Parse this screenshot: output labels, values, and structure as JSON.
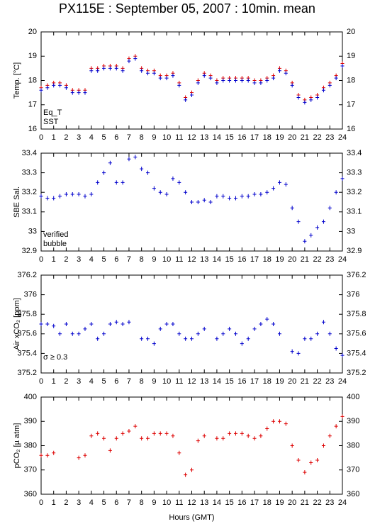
{
  "chart_data": [
    {
      "type": "scatter",
      "title": "PX115E : September 05, 2007 : 10min. mean",
      "ylabel": "Temp. [°C]",
      "x": [
        0,
        0.5,
        1,
        1.5,
        2,
        2.5,
        3,
        3.5,
        4,
        4.5,
        5,
        5.5,
        6,
        6.5,
        7,
        7.5,
        8,
        8.5,
        9,
        9.5,
        10,
        10.5,
        11,
        11.5,
        12,
        12.5,
        13,
        13.5,
        14,
        14.5,
        15,
        15.5,
        16,
        16.5,
        17,
        17.5,
        18,
        18.5,
        19,
        19.5,
        20,
        20.5,
        21,
        21.5,
        22,
        22.5,
        23,
        23.5,
        24
      ],
      "series": [
        {
          "name": "Eq_T",
          "color": "#dd0000",
          "values": [
            17.7,
            17.8,
            17.9,
            17.9,
            17.8,
            17.6,
            17.6,
            17.6,
            18.5,
            18.5,
            18.6,
            18.6,
            18.6,
            18.5,
            18.9,
            19.0,
            18.5,
            18.4,
            18.4,
            18.2,
            18.2,
            18.3,
            17.9,
            17.3,
            17.5,
            18.0,
            18.3,
            18.2,
            18.0,
            18.1,
            18.1,
            18.1,
            18.1,
            18.1,
            18.0,
            18.0,
            18.1,
            18.2,
            18.5,
            18.4,
            17.9,
            17.4,
            17.2,
            17.3,
            17.4,
            17.7,
            17.9,
            18.2,
            18.7
          ]
        },
        {
          "name": "SST",
          "color": "#0000cc",
          "values": [
            17.6,
            17.7,
            17.8,
            17.8,
            17.7,
            17.5,
            17.5,
            17.5,
            18.4,
            18.4,
            18.5,
            18.5,
            18.5,
            18.4,
            18.8,
            18.9,
            18.4,
            18.3,
            18.3,
            18.1,
            18.1,
            18.2,
            17.8,
            17.2,
            17.4,
            17.9,
            18.2,
            18.1,
            17.9,
            18.0,
            18.0,
            18.0,
            18.0,
            18.0,
            17.9,
            17.9,
            18.0,
            18.1,
            18.4,
            18.3,
            17.8,
            17.3,
            17.1,
            17.2,
            17.3,
            17.6,
            17.8,
            18.1,
            18.6
          ]
        }
      ],
      "ylim": [
        16,
        20
      ],
      "yticks": [
        16,
        17,
        18,
        19,
        20
      ],
      "xlim": [
        0,
        24
      ],
      "xticks": [
        0,
        1,
        2,
        3,
        4,
        5,
        6,
        7,
        8,
        9,
        10,
        11,
        12,
        13,
        14,
        15,
        16,
        17,
        18,
        19,
        20,
        21,
        22,
        23,
        24
      ]
    },
    {
      "type": "scatter",
      "ylabel": "SBE Sal.",
      "x": [
        0,
        0.5,
        1,
        1.5,
        2,
        2.5,
        3,
        3.5,
        4,
        4.5,
        5,
        5.5,
        6,
        6.5,
        7,
        7.5,
        8,
        8.5,
        9,
        9.5,
        10,
        10.5,
        11,
        11.5,
        12,
        12.5,
        13,
        13.5,
        14,
        14.5,
        15,
        15.5,
        16,
        16.5,
        17,
        17.5,
        18,
        18.5,
        19,
        19.5,
        20,
        20.5,
        21,
        21.5,
        22,
        22.5,
        23,
        23.5,
        24
      ],
      "series": [
        {
          "name": "verified",
          "color": "#0000cc",
          "values": [
            33.18,
            33.17,
            33.17,
            33.18,
            33.19,
            33.19,
            33.19,
            33.18,
            33.19,
            33.25,
            33.3,
            33.35,
            33.25,
            33.25,
            33.37,
            33.38,
            33.32,
            33.3,
            33.22,
            33.2,
            33.19,
            33.27,
            33.25,
            33.2,
            33.15,
            33.15,
            33.16,
            33.15,
            33.18,
            33.18,
            33.17,
            33.17,
            33.18,
            33.18,
            33.19,
            33.19,
            33.2,
            33.22,
            33.25,
            33.24,
            33.12,
            33.05,
            32.95,
            32.98,
            33.02,
            33.05,
            33.12,
            33.2,
            33.27
          ]
        },
        {
          "name": "bubble",
          "color": "#cc00cc",
          "values": [
            null,
            null,
            null,
            null,
            null,
            null,
            null,
            null,
            null,
            null,
            null,
            null,
            null,
            null,
            null,
            null,
            null,
            null,
            null,
            null,
            null,
            null,
            null,
            null,
            null,
            null,
            null,
            null,
            null,
            null,
            null,
            null,
            null,
            null,
            null,
            null,
            null,
            null,
            null,
            null,
            null,
            null,
            null,
            null,
            null,
            null,
            null,
            null,
            null
          ]
        }
      ],
      "ylim": [
        32.9,
        33.4
      ],
      "yticks": [
        32.9,
        33,
        33.1,
        33.2,
        33.3,
        33.4
      ],
      "xlim": [
        0,
        24
      ],
      "xticks": [
        0,
        1,
        2,
        3,
        4,
        5,
        6,
        7,
        8,
        9,
        10,
        11,
        12,
        13,
        14,
        15,
        16,
        17,
        18,
        19,
        20,
        21,
        22,
        23,
        24
      ]
    },
    {
      "type": "scatter",
      "ylabel": "Air xCO₂ [ppm]",
      "annotation": "σ ≥ 0.3",
      "annotation_color": "#cc00cc",
      "x": [
        0,
        0.5,
        1,
        1.5,
        2,
        2.5,
        3,
        3.5,
        4,
        4.5,
        5,
        5.5,
        6,
        6.5,
        7,
        7.5,
        8,
        8.5,
        9,
        9.5,
        10,
        10.5,
        11,
        11.5,
        12,
        12.5,
        13,
        13.5,
        14,
        14.5,
        15,
        15.5,
        16,
        16.5,
        17,
        17.5,
        18,
        18.5,
        19,
        19.5,
        20,
        20.5,
        21,
        21.5,
        22,
        22.5,
        23,
        23.5,
        24
      ],
      "series": [
        {
          "name": "Air xCO2",
          "color": "#0000cc",
          "values": [
            375.7,
            375.7,
            375.68,
            375.6,
            375.7,
            375.6,
            375.6,
            375.65,
            375.7,
            375.55,
            375.6,
            375.7,
            375.72,
            375.7,
            375.72,
            null,
            375.55,
            375.55,
            375.5,
            375.65,
            375.7,
            375.7,
            375.6,
            375.55,
            375.55,
            375.6,
            375.65,
            null,
            375.55,
            375.6,
            375.65,
            375.6,
            375.5,
            375.55,
            375.65,
            375.7,
            375.75,
            375.7,
            375.6,
            null,
            375.42,
            375.4,
            375.55,
            375.55,
            375.6,
            375.72,
            375.6,
            375.45,
            375.38
          ]
        }
      ],
      "ylim": [
        375.2,
        376.2
      ],
      "yticks": [
        375.2,
        375.4,
        375.6,
        375.8,
        376,
        376.2
      ],
      "xlim": [
        0,
        24
      ],
      "xticks": [
        0,
        1,
        2,
        3,
        4,
        5,
        6,
        7,
        8,
        9,
        10,
        11,
        12,
        13,
        14,
        15,
        16,
        17,
        18,
        19,
        20,
        21,
        22,
        23,
        24
      ]
    },
    {
      "type": "scatter",
      "ylabel": "pCO₂ [µ atm]",
      "xlabel": "Hours (GMT)",
      "x": [
        0,
        0.5,
        1,
        1.5,
        2,
        2.5,
        3,
        3.5,
        4,
        4.5,
        5,
        5.5,
        6,
        6.5,
        7,
        7.5,
        8,
        8.5,
        9,
        9.5,
        10,
        10.5,
        11,
        11.5,
        12,
        12.5,
        13,
        13.5,
        14,
        14.5,
        15,
        15.5,
        16,
        16.5,
        17,
        17.5,
        18,
        18.5,
        19,
        19.5,
        20,
        20.5,
        21,
        21.5,
        22,
        22.5,
        23,
        23.5,
        24
      ],
      "series": [
        {
          "name": "pCO2",
          "color": "#dd0000",
          "values": [
            376,
            376,
            377,
            null,
            null,
            null,
            375,
            376,
            384,
            385,
            383,
            378,
            383,
            385,
            386,
            388,
            383,
            383,
            385,
            385,
            385,
            384,
            377,
            368,
            370,
            382,
            384,
            null,
            383,
            383,
            385,
            385,
            385,
            384,
            383,
            384,
            387,
            390,
            390,
            389,
            380,
            374,
            369,
            373,
            374,
            380,
            384,
            388,
            392
          ]
        }
      ],
      "ylim": [
        360,
        400
      ],
      "yticks": [
        360,
        370,
        380,
        390,
        400
      ],
      "xlim": [
        0,
        24
      ],
      "xticks": [
        0,
        1,
        2,
        3,
        4,
        5,
        6,
        7,
        8,
        9,
        10,
        11,
        12,
        13,
        14,
        15,
        16,
        17,
        18,
        19,
        20,
        21,
        22,
        23,
        24
      ]
    }
  ]
}
